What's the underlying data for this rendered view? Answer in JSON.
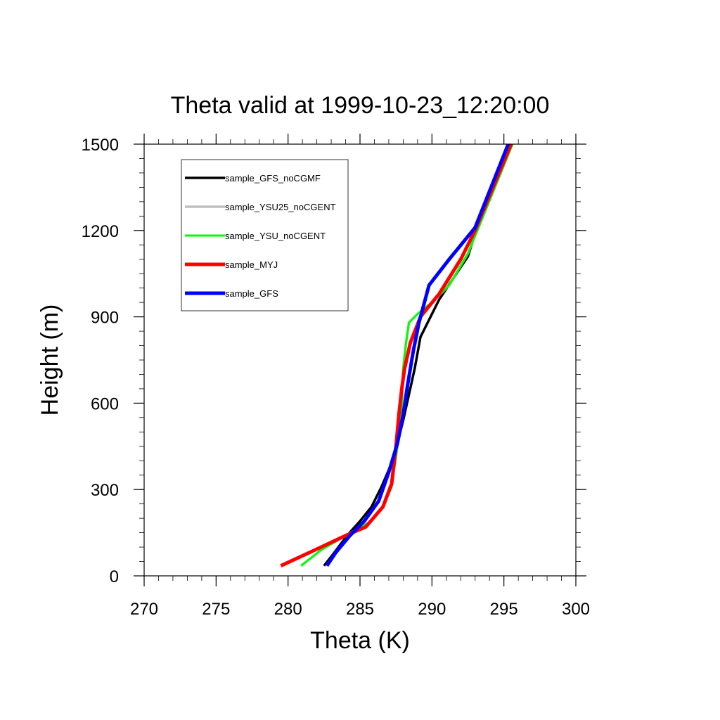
{
  "chart_data": {
    "type": "line",
    "title": "Theta valid at 1999-10-23_12:20:00",
    "xlabel": "Theta (K)",
    "ylabel": "Height (m)",
    "xlim": [
      270,
      300
    ],
    "ylim": [
      0,
      1500
    ],
    "x_ticks": [
      "270",
      "275",
      "280",
      "285",
      "290",
      "295",
      "300"
    ],
    "y_ticks": [
      "0",
      "300",
      "600",
      "900",
      "1200",
      "1500"
    ],
    "grid": false,
    "legend_position": "top-left",
    "series": [
      {
        "name": "sample_GFS_noCGMF",
        "color": "#000000",
        "x": [
          282.5,
          283.2,
          284.1,
          285.0,
          285.8,
          286.5,
          287.1,
          287.6,
          288.0,
          288.4,
          288.8,
          289.2,
          290.5,
          292.5,
          293.2,
          295.3
        ],
        "y": [
          35,
          80,
          140,
          190,
          240,
          310,
          380,
          460,
          540,
          630,
          720,
          830,
          960,
          1110,
          1220,
          1500
        ]
      },
      {
        "name": "sample_YSU25_noCGENT",
        "color": "#bfbfbf",
        "x": [
          280.9,
          282.3,
          284.0,
          285.8,
          286.6,
          287.2,
          287.6,
          287.9,
          288.0,
          288.2,
          288.4,
          289.0,
          290.0,
          291.2,
          292.5,
          295.6
        ],
        "y": [
          35,
          90,
          140,
          190,
          240,
          310,
          450,
          590,
          720,
          810,
          880,
          910,
          950,
          1010,
          1120,
          1500
        ]
      },
      {
        "name": "sample_YSU_noCGENT",
        "color": "#00ff00",
        "x": [
          280.9,
          282.3,
          284.0,
          285.8,
          286.6,
          287.2,
          287.6,
          287.9,
          288.0,
          288.2,
          288.4,
          289.0,
          290.0,
          291.2,
          292.5,
          295.6
        ],
        "y": [
          35,
          90,
          140,
          190,
          240,
          310,
          450,
          590,
          720,
          810,
          880,
          910,
          950,
          1010,
          1120,
          1500
        ]
      },
      {
        "name": "sample_MYJ",
        "color": "#ff0000",
        "x": [
          279.5,
          282.3,
          284.0,
          285.4,
          286.6,
          287.2,
          287.5,
          287.7,
          287.9,
          288.1,
          288.5,
          289.2,
          290.5,
          292.0,
          293.0,
          295.5
        ],
        "y": [
          35,
          100,
          140,
          170,
          240,
          320,
          450,
          560,
          650,
          720,
          810,
          900,
          980,
          1100,
          1200,
          1500
        ]
      },
      {
        "name": "sample_GFS",
        "color": "#0000ff",
        "x": [
          282.7,
          283.3,
          284.3,
          285.3,
          286.3,
          287.0,
          287.6,
          288.0,
          288.3,
          288.7,
          289.1,
          289.8,
          291.2,
          293.0,
          295.3
        ],
        "y": [
          35,
          80,
          140,
          190,
          260,
          360,
          460,
          560,
          660,
          780,
          880,
          1010,
          1100,
          1210,
          1500
        ]
      }
    ]
  }
}
